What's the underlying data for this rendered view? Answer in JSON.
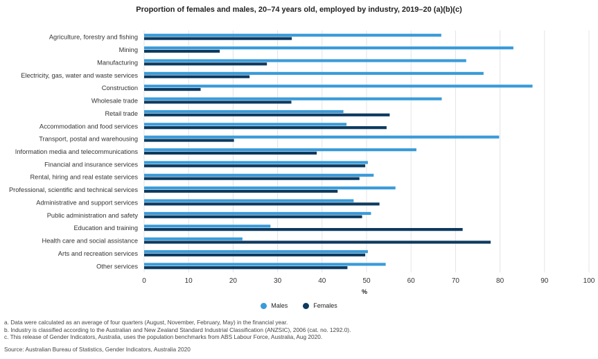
{
  "chart_data": {
    "type": "bar",
    "orientation": "horizontal",
    "title": "Proportion of females and males, 20–74 years old, employed by industry, 2019–20 (a)(b)(c)",
    "xlabel": "%",
    "ylabel": "",
    "xlim": [
      0,
      100
    ],
    "xticks": [
      "0",
      "10",
      "20",
      "30",
      "40",
      "50",
      "60",
      "70",
      "80",
      "90",
      "100"
    ],
    "grid": true,
    "legend_position": "bottom",
    "categories": [
      "Agriculture, forestry and fishing",
      "Mining",
      "Manufacturing",
      "Electricity, gas, water and waste services",
      "Construction",
      "Wholesale trade",
      "Retail trade",
      "Accommodation and food services",
      "Transport, postal and warehousing",
      "Information media and telecommunications",
      "Financial and insurance services",
      "Rental, hiring and real estate services",
      "Professional, scientific and technical services",
      "Administrative and support services",
      "Public administration and safety",
      "Education and training",
      "Health care and social assistance",
      "Arts and recreation services",
      "Other services"
    ],
    "series": [
      {
        "name": "Males",
        "color": "#3a9bd9",
        "values": [
          66.8,
          83.0,
          72.4,
          76.3,
          87.3,
          66.9,
          44.8,
          45.5,
          79.8,
          61.2,
          50.3,
          51.6,
          56.5,
          47.1,
          51.0,
          28.4,
          22.1,
          50.3,
          54.3
        ]
      },
      {
        "name": "Females",
        "color": "#0d3a5f",
        "values": [
          33.2,
          17.0,
          27.6,
          23.7,
          12.7,
          33.1,
          55.2,
          54.5,
          20.2,
          38.8,
          49.7,
          48.4,
          43.5,
          52.9,
          49.0,
          71.6,
          77.9,
          49.7,
          45.7
        ]
      }
    ]
  },
  "notes": [
    "a. Data were calculated as an average of four quarters (August, November, February, May) in the financial year.",
    "b. Industry is classified according to the Australian and New Zealand Standard Industrial Classification (ANZSIC), 2006 (cat. no. 1292.0).",
    "c. This release of Gender Indicators, Australia, uses the population benchmarks from ABS Labour Force, Australia, Aug 2020."
  ],
  "source": "Source: Australian Bureau of Statistics, Gender Indicators, Australia 2020"
}
